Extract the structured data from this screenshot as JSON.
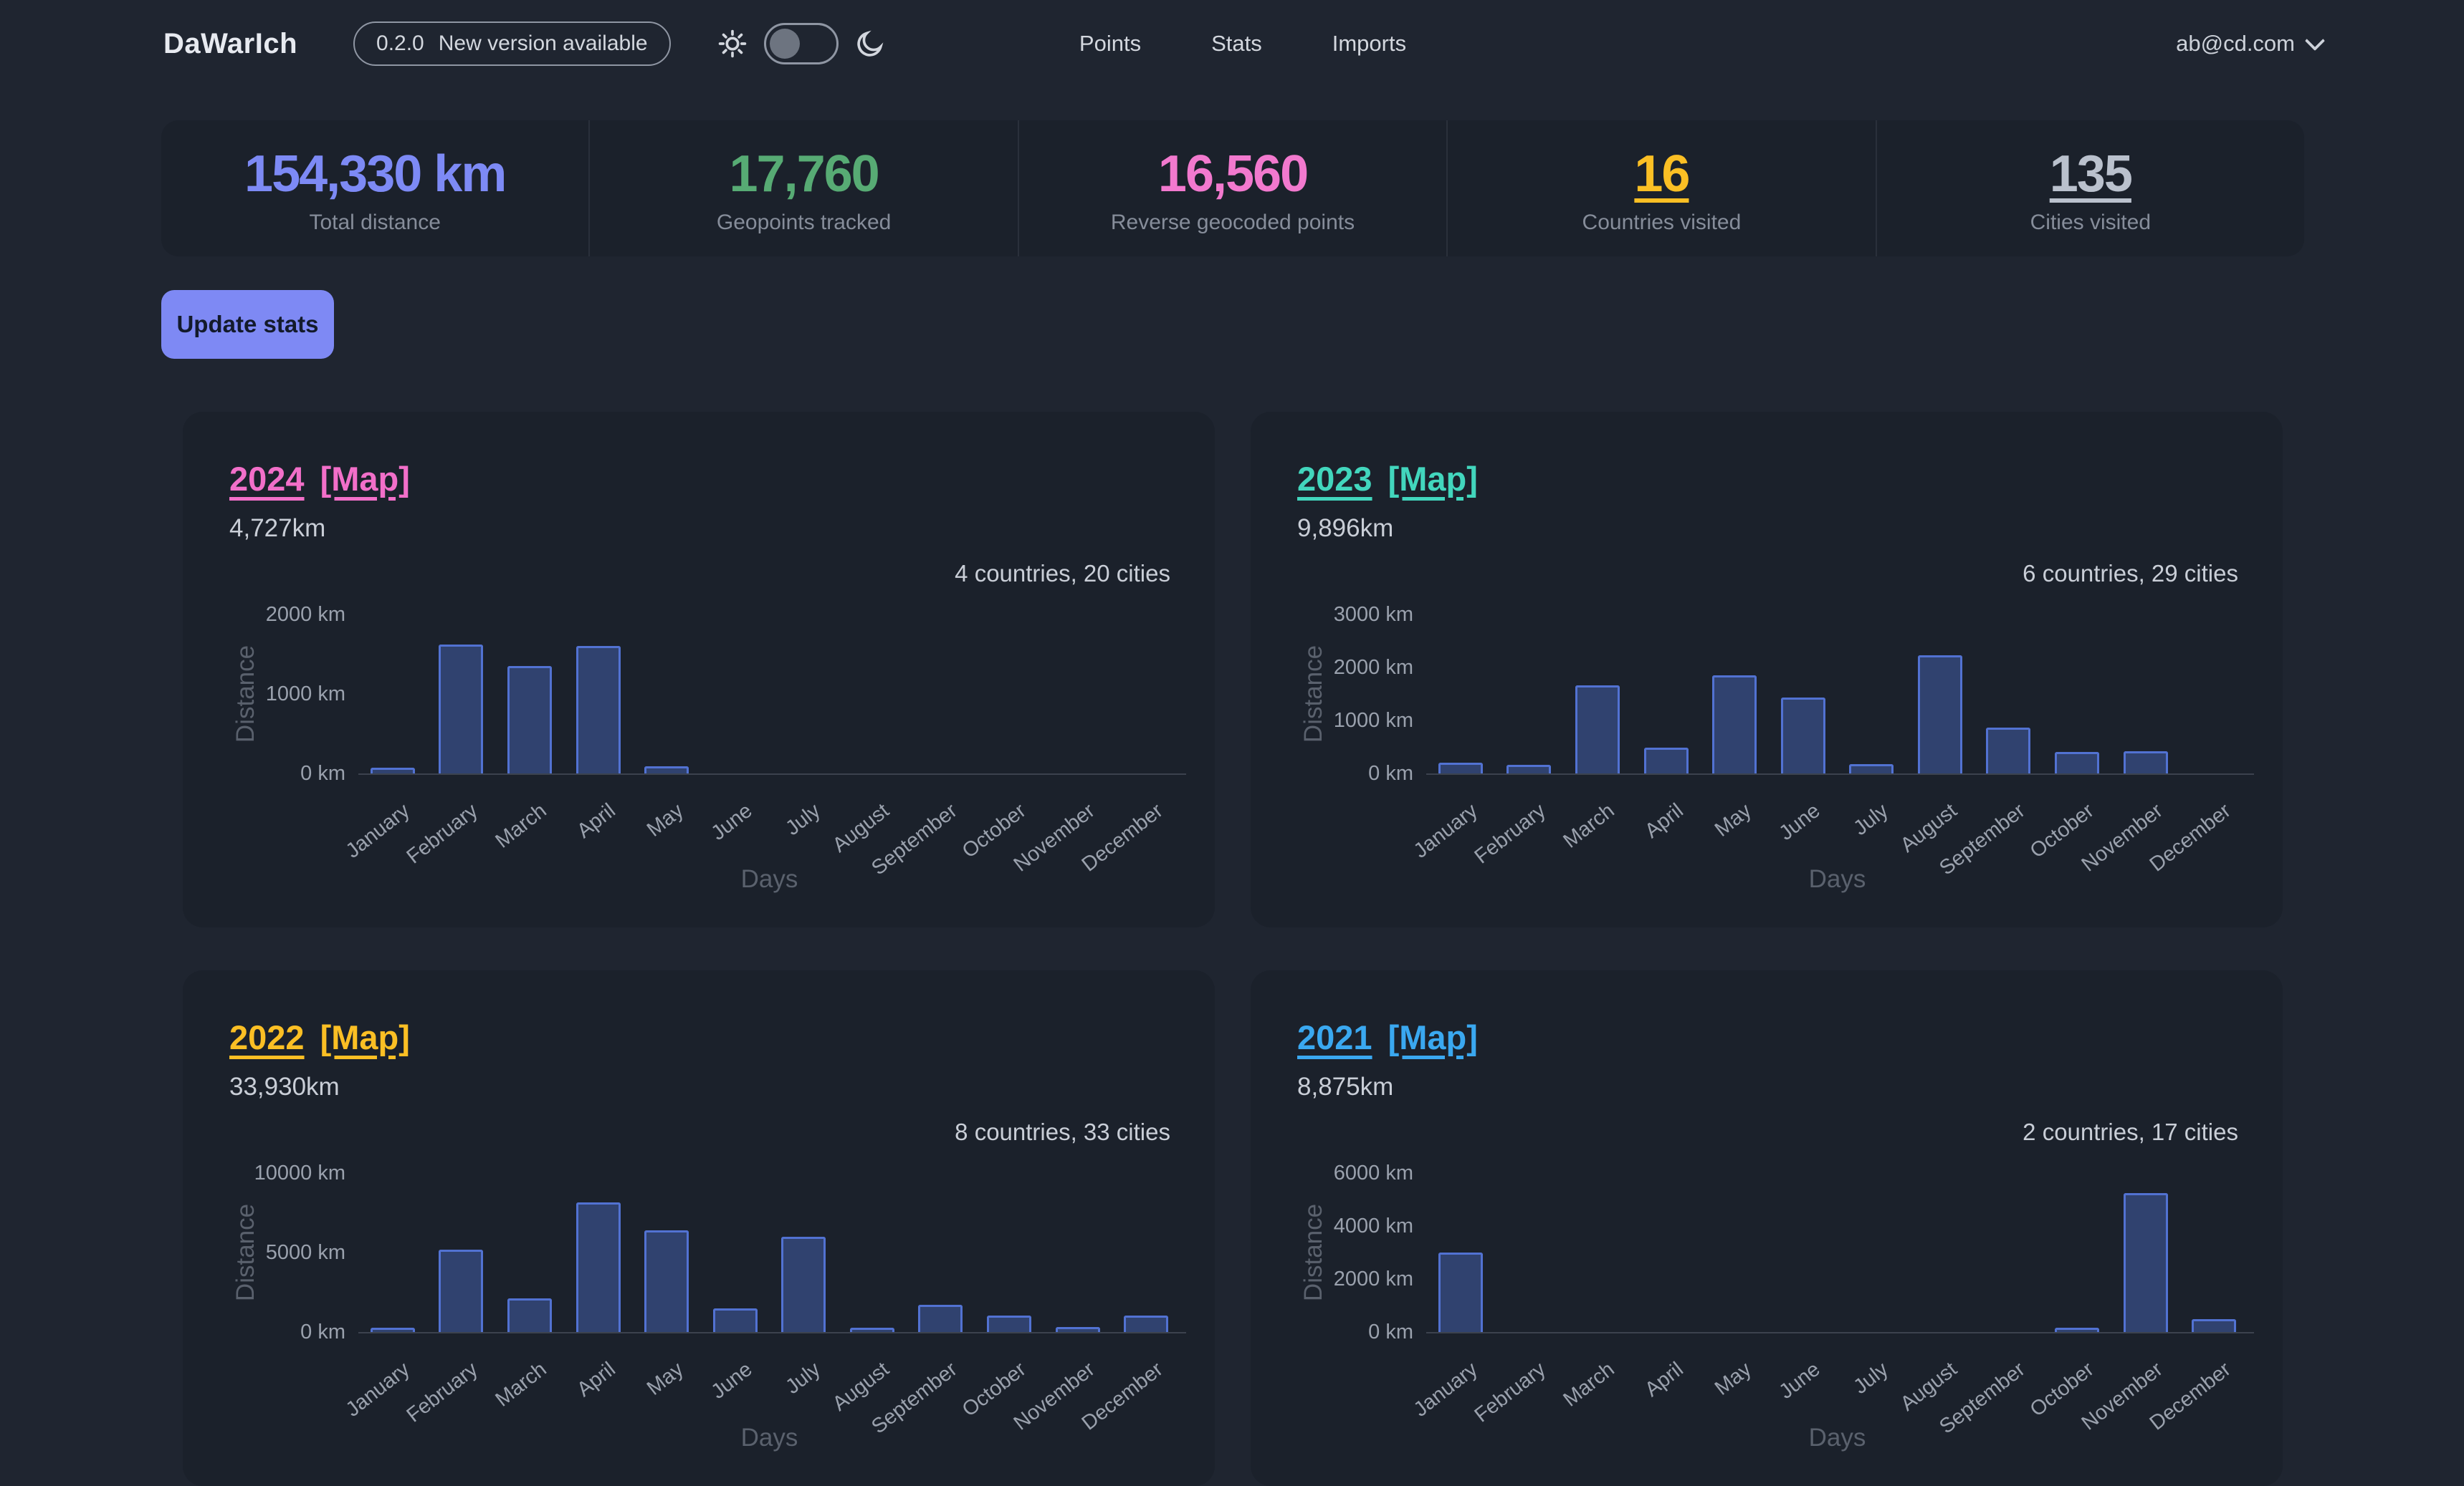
{
  "header": {
    "logo": "DaWarIch",
    "version_badge": {
      "version": "0.2.0",
      "text": "New version available"
    },
    "nav": [
      {
        "label": "Points"
      },
      {
        "label": "Stats"
      },
      {
        "label": "Imports"
      }
    ],
    "user": {
      "email": "ab@cd.com"
    }
  },
  "stats": [
    {
      "value": "154,330 km",
      "label": "Total distance",
      "color": "#7d8af5",
      "underline": false
    },
    {
      "value": "17,760",
      "label": "Geopoints tracked",
      "color": "#57ab74",
      "underline": false
    },
    {
      "value": "16,560",
      "label": "Reverse geocoded points",
      "color": "#f279ce",
      "underline": false
    },
    {
      "value": "16",
      "label": "Countries visited",
      "color": "#fbbf24",
      "underline": true
    },
    {
      "value": "135",
      "label": "Cities visited",
      "color": "#bac1cd",
      "underline": true
    }
  ],
  "actions": {
    "update_stats_label": "Update stats"
  },
  "cards": [
    {
      "year": "2024",
      "map_label": "[Map]",
      "distance": "4,727km",
      "summary": "4 countries, 20 cities",
      "accent": "#f26fc9"
    },
    {
      "year": "2023",
      "map_label": "[Map]",
      "distance": "9,896km",
      "summary": "6 countries, 29 cities",
      "accent": "#42d6bd"
    },
    {
      "year": "2022",
      "map_label": "[Map]",
      "distance": "33,930km",
      "summary": "8 countries, 33 cities",
      "accent": "#fbbf24"
    },
    {
      "year": "2021",
      "map_label": "[Map]",
      "distance": "8,875km",
      "summary": "2 countries, 17 cities",
      "accent": "#3aa8f0"
    }
  ],
  "chart_data": [
    {
      "type": "bar",
      "title": "2024 monthly distance",
      "categories": [
        "January",
        "February",
        "March",
        "April",
        "May",
        "June",
        "July",
        "August",
        "September",
        "October",
        "November",
        "December"
      ],
      "values": [
        70,
        1620,
        1350,
        1600,
        87,
        0,
        0,
        0,
        0,
        0,
        0,
        0
      ],
      "xlabel": "Days",
      "ylabel": "Distance",
      "ylim": [
        0,
        2000
      ],
      "yticks": [
        0,
        1000,
        2000
      ],
      "ytick_suffix": " km",
      "bar_fill": "#30426f",
      "bar_border": "#5272d2",
      "grid": false,
      "legend": "none"
    },
    {
      "type": "bar",
      "title": "2023 monthly distance",
      "categories": [
        "January",
        "February",
        "March",
        "April",
        "May",
        "June",
        "July",
        "August",
        "September",
        "October",
        "November",
        "December"
      ],
      "values": [
        200,
        160,
        1660,
        490,
        1850,
        1430,
        180,
        2230,
        870,
        410,
        416,
        0
      ],
      "xlabel": "Days",
      "ylabel": "Distance",
      "ylim": [
        0,
        3000
      ],
      "yticks": [
        0,
        1000,
        2000,
        3000
      ],
      "ytick_suffix": " km",
      "bar_fill": "#30426f",
      "bar_border": "#5272d2",
      "grid": false,
      "legend": "none"
    },
    {
      "type": "bar",
      "title": "2022 monthly distance",
      "categories": [
        "January",
        "February",
        "March",
        "April",
        "May",
        "June",
        "July",
        "August",
        "September",
        "October",
        "November",
        "December"
      ],
      "values": [
        250,
        5200,
        2100,
        8150,
        6400,
        1500,
        6000,
        250,
        1700,
        1040,
        300,
        1040
      ],
      "xlabel": "Days",
      "ylabel": "Distance",
      "ylim": [
        0,
        10000
      ],
      "yticks": [
        0,
        5000,
        10000
      ],
      "ytick_suffix": " km",
      "bar_fill": "#30426f",
      "bar_border": "#5272d2",
      "grid": false,
      "legend": "none"
    },
    {
      "type": "bar",
      "title": "2021 monthly distance",
      "categories": [
        "January",
        "February",
        "March",
        "April",
        "May",
        "June",
        "July",
        "August",
        "September",
        "October",
        "November",
        "December"
      ],
      "values": [
        3000,
        0,
        0,
        0,
        0,
        0,
        0,
        0,
        0,
        160,
        5230,
        485
      ],
      "xlabel": "Days",
      "ylabel": "Distance",
      "ylim": [
        0,
        6000
      ],
      "yticks": [
        0,
        2000,
        4000,
        6000
      ],
      "ytick_suffix": " km",
      "bar_fill": "#30426f",
      "bar_border": "#5272d2",
      "grid": false,
      "legend": "none"
    }
  ],
  "colors": {
    "page_bg": "#1f2530",
    "panel_bg": "#1b212b",
    "divider": "#2a303b",
    "button_bg": "#7e89f4",
    "button_text": "#131a2b",
    "axis_tick": "#9aa1ad",
    "axis_title": "#5a616d"
  }
}
